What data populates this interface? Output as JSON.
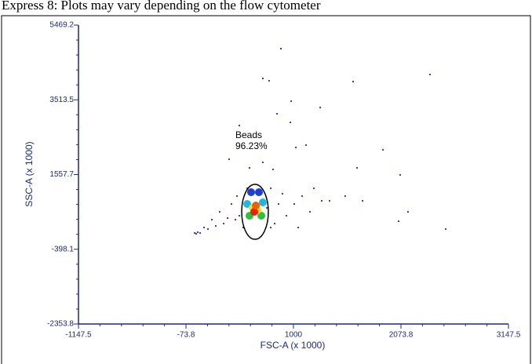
{
  "chart_data": {
    "type": "scatter",
    "caption": "Express 8: Plots may vary depending on the flow cytometer",
    "x_label": "FSC-A (x 1000)",
    "y_label": "SSC-A (x 1000)",
    "xlim": [
      -1147.5,
      3147.5
    ],
    "xticks": [
      -1147.5,
      -73.8,
      1000,
      2073.8,
      3147.5
    ],
    "ylim": [
      -2353.8,
      5469.2
    ],
    "yticks": [
      5469.2,
      3513.5,
      1557.7,
      -398.1,
      -2353.8
    ],
    "color": "#2a2ab5",
    "x": [
      875,
      694,
      757,
      1596,
      2364,
      977,
      836,
      1267,
      459,
      969,
      1126,
      1024,
      1894,
      561,
      694,
      796,
      1635,
      2066,
      357,
      538,
      773,
      890,
      1204,
      1282,
      1517,
      1690,
      2144,
      2050,
      2521,
      1047,
      812,
      381,
      263,
      185,
      107,
      303,
      420,
      68,
      28,
      44,
      146,
      224,
      342,
      459,
      734,
      851,
      930,
      1008,
      1086,
      1165,
      1361,
      436,
      498,
      773,
      13,
      577,
      655,
      538,
      694,
      561,
      679,
      592,
      640,
      608,
      624
    ],
    "y": [
      4853,
      4073,
      4011,
      3991,
      4176,
      3478,
      3149,
      3313,
      2841,
      2923,
      2328,
      2266,
      2204,
      1732,
      1876,
      1691,
      1732,
      1547,
      1958,
      1198,
      1198,
      1055,
      1198,
      870,
      993,
      870,
      582,
      336,
      131,
      172,
      274,
      788,
      582,
      377,
      172,
      274,
      377,
      28,
      7,
      49,
      131,
      213,
      418,
      480,
      685,
      788,
      480,
      788,
      993,
      582,
      870,
      993,
      172,
      172,
      28,
      1096,
      1096,
      788,
      829,
      480,
      480,
      685,
      624,
      582,
      747
    ],
    "point_colors": [
      "#2a2ab5",
      "#2a2ab5",
      "#2a2ab5",
      "#2a2ab5",
      "#2a2ab5",
      "#2a2ab5",
      "#2a2ab5",
      "#2a2ab5",
      "#2a2ab5",
      "#2a2ab5",
      "#2a2ab5",
      "#2a2ab5",
      "#2a2ab5",
      "#2a2ab5",
      "#2a2ab5",
      "#2a2ab5",
      "#2a2ab5",
      "#2a2ab5",
      "#2a2ab5",
      "#2a2ab5",
      "#2a2ab5",
      "#2a2ab5",
      "#2a2ab5",
      "#2a2ab5",
      "#2a2ab5",
      "#2a2ab5",
      "#2a2ab5",
      "#2a2ab5",
      "#2a2ab5",
      "#2a2ab5",
      "#2a2ab5",
      "#2a2ab5",
      "#2a2ab5",
      "#2a2ab5",
      "#2a2ab5",
      "#2a2ab5",
      "#2a2ab5",
      "#2a2ab5",
      "#2a2ab5",
      "#2a2ab5",
      "#2a2ab5",
      "#2a2ab5",
      "#2a2ab5",
      "#2a2ab5",
      "#2a2ab5",
      "#2a2ab5",
      "#2a2ab5",
      "#2a2ab5",
      "#2a2ab5",
      "#2a2ab5",
      "#2a2ab5",
      "#2a2ab5",
      "#2a2ab5",
      "#2a2ab5",
      "#2a2ab5",
      "#1f3fd0",
      "#1f3fd0",
      "#20b8e0",
      "#20b8e0",
      "#30c040",
      "#30c040",
      "#f0e020",
      "#f0e020",
      "#e82010",
      "#e86010"
    ],
    "gate": {
      "name": "Beads",
      "label": "96.23%",
      "center": [
        616,
        582
      ],
      "radii": [
        133,
        719
      ]
    }
  }
}
